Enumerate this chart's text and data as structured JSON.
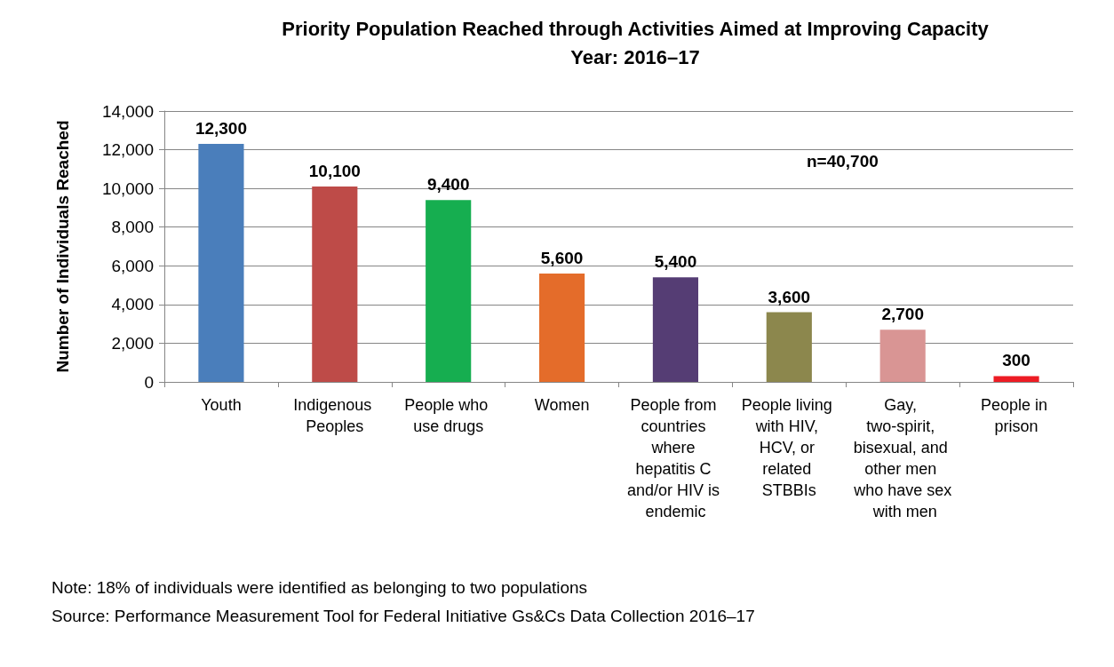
{
  "chart_data": {
    "type": "bar",
    "title": "Priority Population Reached through Activities Aimed at Improving Capacity",
    "subtitle": "Year: 2016–17",
    "ylabel": "Number of Individuals Reached",
    "categories": [
      "Youth",
      "Indigenous Peoples",
      "People who use drugs",
      "Women",
      "People from countries where hepatitis C and/or HIV is endemic",
      "People living with HIV, HCV, or related STBBIs",
      "Gay, two-spirit, bisexual, and other men who have sex with men",
      "People in prison"
    ],
    "values": [
      12300,
      10100,
      9400,
      5600,
      5400,
      3600,
      2700,
      300
    ],
    "colors": [
      "#4a7ebb",
      "#be4b48",
      "#16ae50",
      "#e46c2a",
      "#553d74",
      "#8c874d",
      "#d99594",
      "#ed1c24"
    ],
    "value_labels": [
      "12,300",
      "10,100",
      "9,400",
      "5,600",
      "5,400",
      "3,600",
      "2,700",
      "300"
    ],
    "ylim": [
      0,
      14000
    ],
    "yticks": [
      0,
      {
        "value": 2000,
        "label": "2,000"
      },
      {
        "value": 4000,
        "label": "4,000"
      },
      {
        "value": 6000,
        "label": "6,000"
      },
      {
        "value": 8000,
        "label": "8,000"
      },
      {
        "value": 10000,
        "label": "10,000"
      },
      {
        "value": 12000,
        "label": "12,000"
      },
      {
        "value": 14000,
        "label": "14,000"
      }
    ],
    "grid": "y",
    "annotations": [
      "n=40,700",
      "Note: 18% of individuals were identified as belonging to two populations",
      "Source: Performance Measurement Tool for Federal Initiative Gs&Cs Data Collection 2016–17"
    ]
  }
}
